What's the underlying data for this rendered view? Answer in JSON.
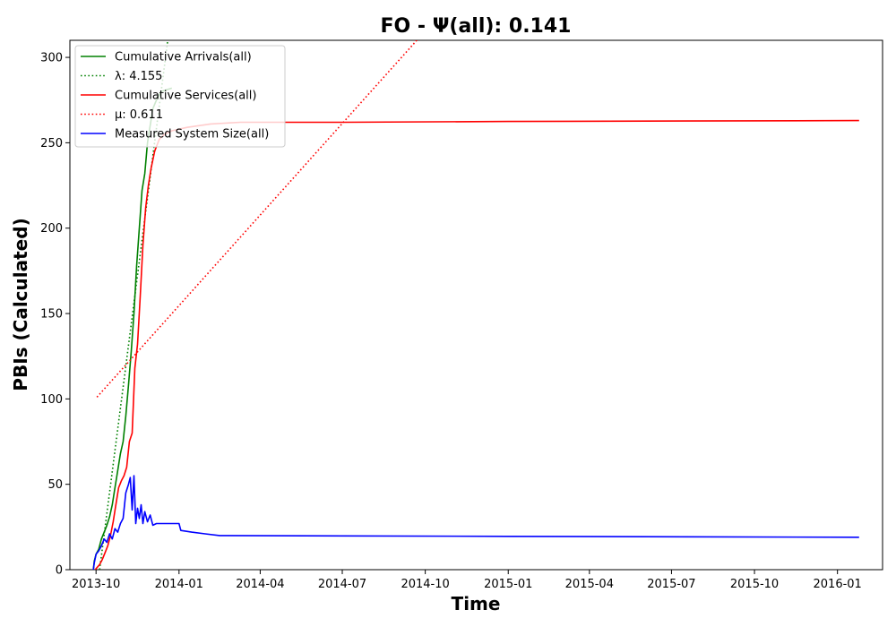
{
  "chart_data": {
    "type": "line",
    "title": "FO -  Ψ(all): 0.141",
    "xlabel": "Time",
    "ylabel": "PBIs (Calculated)",
    "xlim": [
      "2013-09-02",
      "2016-02-20"
    ],
    "ylim": [
      0,
      310
    ],
    "x_ticks": [
      "2013-10",
      "2014-01",
      "2014-04",
      "2014-07",
      "2014-10",
      "2015-01",
      "2015-04",
      "2015-07",
      "2015-10",
      "2016-01"
    ],
    "y_ticks": [
      0,
      50,
      100,
      150,
      200,
      250,
      300
    ],
    "grid": false,
    "legend": "top-left",
    "series": [
      {
        "name": "Cumulative Arrivals(all)",
        "style": "solid",
        "color": "#008000",
        "points": [
          [
            "2013-09-28",
            0
          ],
          [
            "2013-09-29",
            5
          ],
          [
            "2013-10-01",
            9
          ],
          [
            "2013-10-04",
            12
          ],
          [
            "2013-10-07",
            18
          ],
          [
            "2013-10-10",
            22
          ],
          [
            "2013-10-13",
            26
          ],
          [
            "2013-10-16",
            31
          ],
          [
            "2013-10-19",
            38
          ],
          [
            "2013-10-22",
            48
          ],
          [
            "2013-10-25",
            58
          ],
          [
            "2013-10-28",
            68
          ],
          [
            "2013-10-31",
            75
          ],
          [
            "2013-11-03",
            90
          ],
          [
            "2013-11-06",
            108
          ],
          [
            "2013-11-09",
            128
          ],
          [
            "2013-11-12",
            150
          ],
          [
            "2013-11-15",
            178
          ],
          [
            "2013-11-18",
            200
          ],
          [
            "2013-11-21",
            222
          ],
          [
            "2013-11-24",
            232
          ],
          [
            "2013-11-27",
            250
          ],
          [
            "2013-11-30",
            260
          ],
          [
            "2013-12-03",
            270
          ],
          [
            "2013-12-07",
            275
          ],
          [
            "2013-12-12",
            280
          ],
          [
            "2013-12-18",
            281
          ],
          [
            "2013-12-24",
            282
          ]
        ]
      },
      {
        "name": "λ: 4.155",
        "style": "dotted",
        "color": "#008000",
        "points": [
          [
            "2013-10-05",
            0
          ],
          [
            "2013-12-20",
            312
          ]
        ]
      },
      {
        "name": "Cumulative Services(all)",
        "style": "solid",
        "color": "#ff0000",
        "points": [
          [
            "2013-09-30",
            0
          ],
          [
            "2013-10-05",
            3
          ],
          [
            "2013-10-08",
            6
          ],
          [
            "2013-10-11",
            10
          ],
          [
            "2013-10-14",
            14
          ],
          [
            "2013-10-17",
            20
          ],
          [
            "2013-10-20",
            28
          ],
          [
            "2013-10-23",
            38
          ],
          [
            "2013-10-26",
            48
          ],
          [
            "2013-10-29",
            52
          ],
          [
            "2013-11-01",
            55
          ],
          [
            "2013-11-04",
            60
          ],
          [
            "2013-11-07",
            75
          ],
          [
            "2013-11-10",
            80
          ],
          [
            "2013-11-13",
            118
          ],
          [
            "2013-11-16",
            132
          ],
          [
            "2013-11-19",
            160
          ],
          [
            "2013-11-22",
            190
          ],
          [
            "2013-11-25",
            212
          ],
          [
            "2013-11-28",
            225
          ],
          [
            "2013-12-01",
            235
          ],
          [
            "2013-12-05",
            245
          ],
          [
            "2013-12-10",
            252
          ],
          [
            "2013-12-16",
            255
          ],
          [
            "2013-12-24",
            257
          ],
          [
            "2014-01-10",
            259
          ],
          [
            "2014-02-05",
            261
          ],
          [
            "2014-03-10",
            262
          ],
          [
            "2014-07-01",
            262
          ],
          [
            "2015-01-01",
            262.5
          ],
          [
            "2016-01-25",
            263
          ]
        ]
      },
      {
        "name": "μ: 0.611",
        "style": "dotted",
        "color": "#ff0000",
        "points": [
          [
            "2013-10-02",
            101
          ],
          [
            "2014-09-25",
            312
          ]
        ]
      },
      {
        "name": "Measured System Size(all)",
        "style": "solid",
        "color": "#0000ff",
        "points": [
          [
            "2013-09-28",
            0
          ],
          [
            "2013-09-29",
            4
          ],
          [
            "2013-10-01",
            9
          ],
          [
            "2013-10-04",
            11
          ],
          [
            "2013-10-07",
            14
          ],
          [
            "2013-10-10",
            18
          ],
          [
            "2013-10-13",
            16
          ],
          [
            "2013-10-16",
            21
          ],
          [
            "2013-10-19",
            18
          ],
          [
            "2013-10-22",
            24
          ],
          [
            "2013-10-25",
            22
          ],
          [
            "2013-10-28",
            27
          ],
          [
            "2013-10-31",
            30
          ],
          [
            "2013-11-03",
            45
          ],
          [
            "2013-11-06",
            50
          ],
          [
            "2013-11-08",
            54
          ],
          [
            "2013-11-10",
            35
          ],
          [
            "2013-11-12",
            55
          ],
          [
            "2013-11-14",
            27
          ],
          [
            "2013-11-16",
            36
          ],
          [
            "2013-11-18",
            30
          ],
          [
            "2013-11-20",
            38
          ],
          [
            "2013-11-22",
            27
          ],
          [
            "2013-11-24",
            34
          ],
          [
            "2013-11-27",
            28
          ],
          [
            "2013-11-30",
            32
          ],
          [
            "2013-12-03",
            26
          ],
          [
            "2013-12-07",
            27
          ],
          [
            "2014-01-01",
            27
          ],
          [
            "2014-01-03",
            23
          ],
          [
            "2014-01-15",
            22
          ],
          [
            "2014-01-30",
            21
          ],
          [
            "2014-02-15",
            20
          ],
          [
            "2015-01-01",
            19.5
          ],
          [
            "2016-01-25",
            19
          ]
        ]
      }
    ]
  }
}
